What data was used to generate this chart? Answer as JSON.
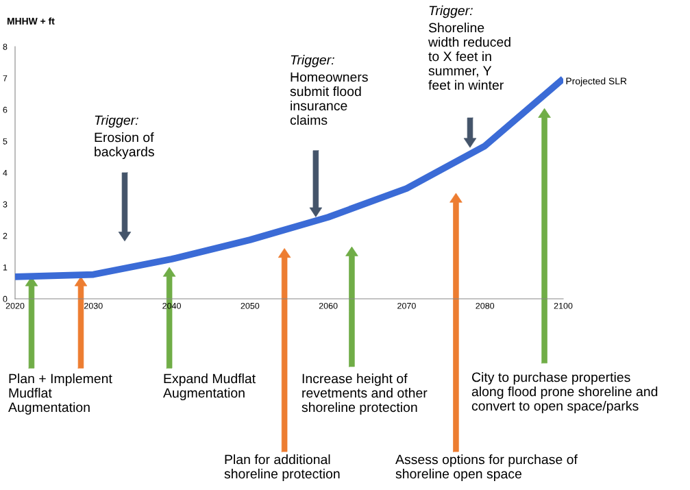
{
  "chart_data": {
    "type": "line",
    "ylabel": "MHHW + ft",
    "categories": [
      "2020",
      "2030",
      "2040",
      "2050",
      "2060",
      "2070",
      "2080",
      "2100"
    ],
    "series": [
      {
        "name": "Projected SLR",
        "color": "#3b6bd6",
        "values": [
          0.7,
          0.77,
          1.26,
          1.87,
          2.59,
          3.5,
          4.85,
          6.98
        ]
      }
    ],
    "ylim": [
      0,
      8
    ],
    "yticks": [
      0,
      1,
      2,
      3,
      4,
      5,
      6,
      7,
      8
    ],
    "grid": false,
    "legend": false,
    "annotations": [
      "Trigger:\nErosion of\nbackyards",
      "Trigger:\nHomeowners\nsubmit flood\ninsurance\nclaims",
      "Trigger:\nShoreline\nwidth reduced\nto X feet in\nsummer, Y\nfeet in winter",
      "Plan + Implement\nMudflat\nAugmentation",
      "Expand Mudflat\nAugmentation",
      "Plan for additional\nshoreline protection",
      "Increase height of\nrevetments and other\nshoreline protection",
      "Assess options for purchase of\nshoreline open space",
      "City to purchase properties\nalong flood prone shoreline and\nconvert to open space/parks"
    ]
  }
}
